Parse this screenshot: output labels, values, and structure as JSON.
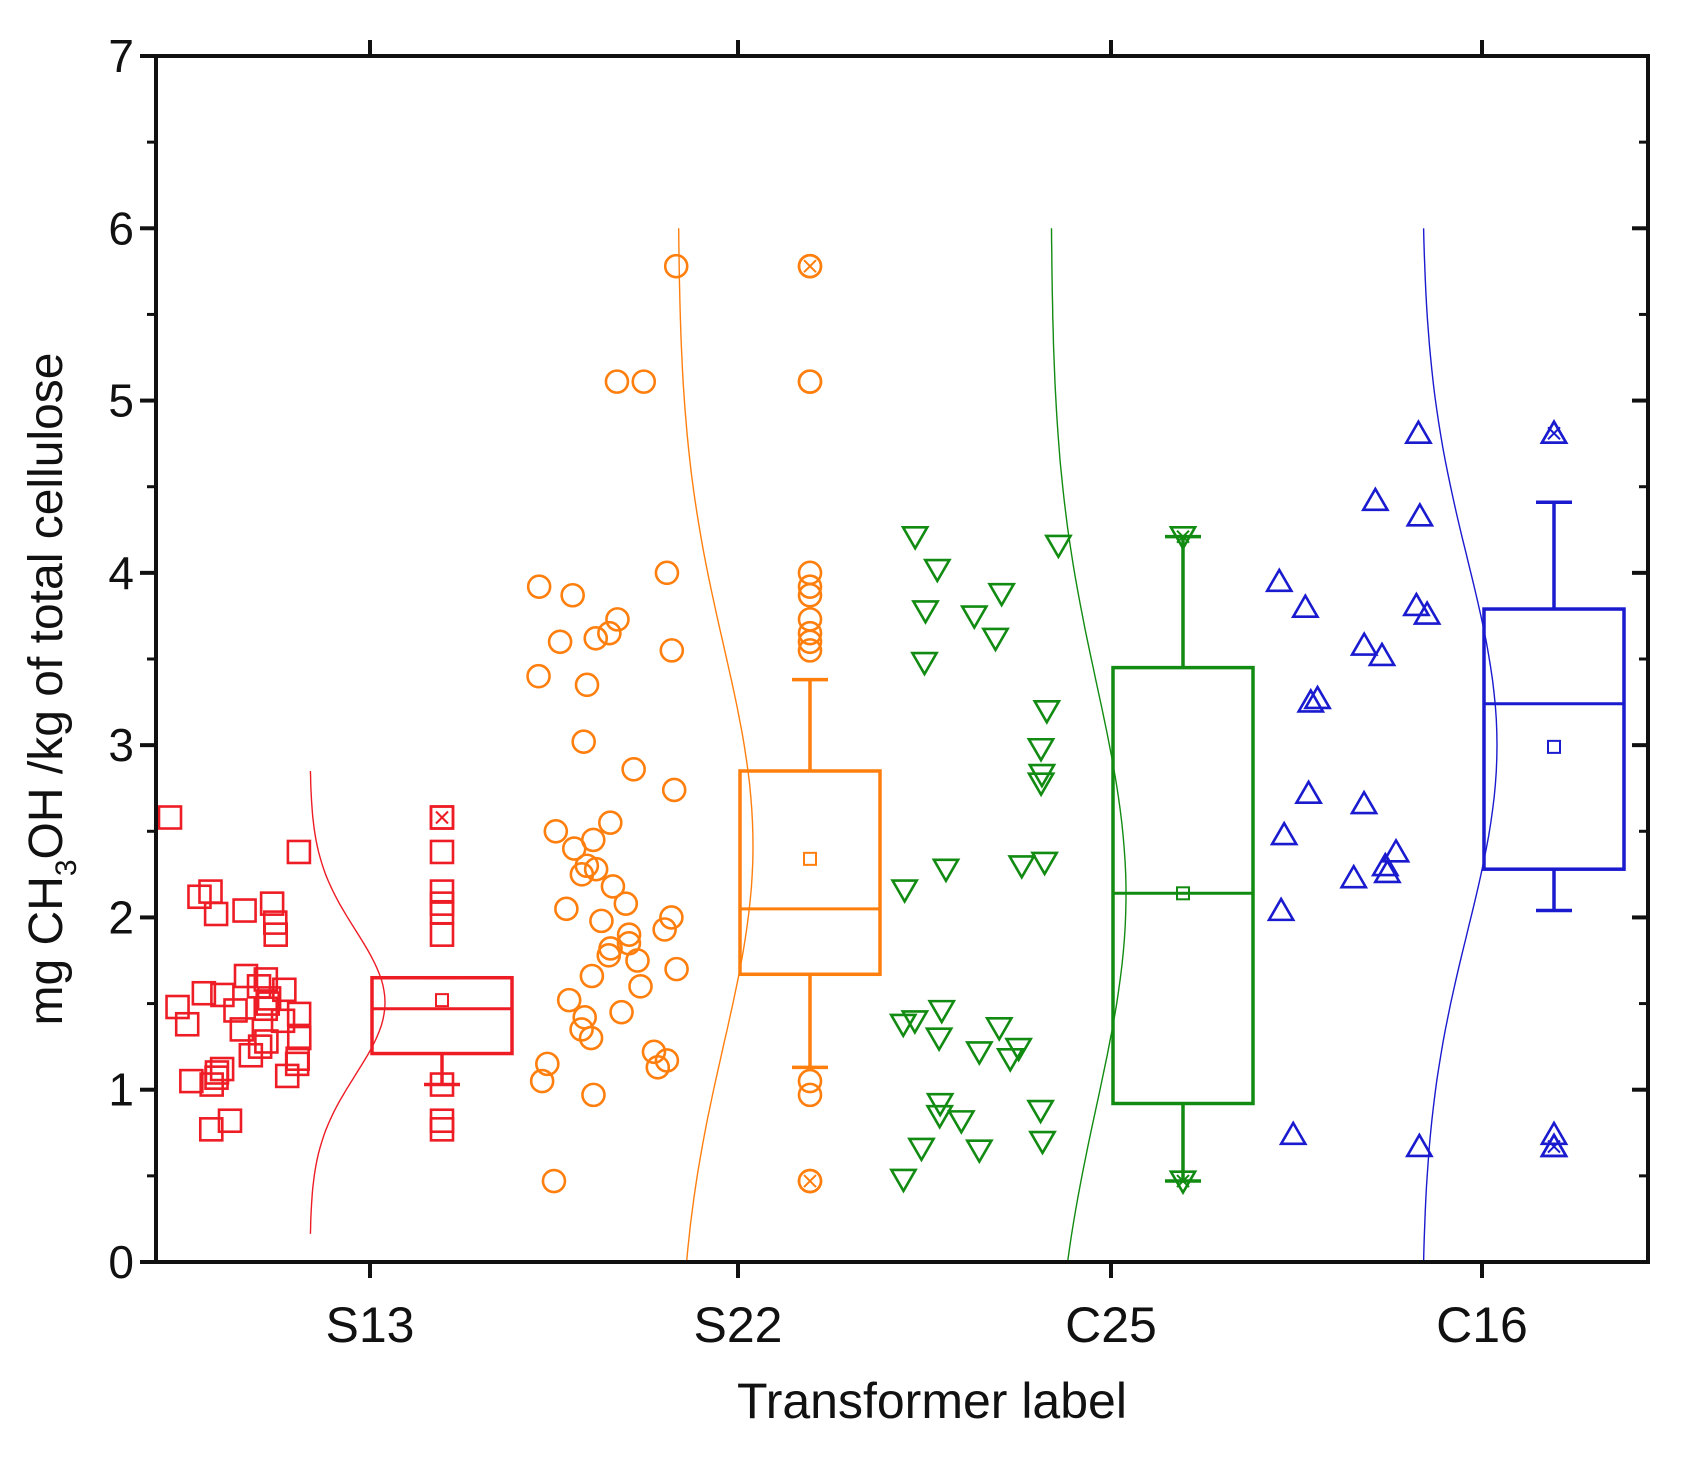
{
  "chart_data": {
    "type": "box",
    "title": "",
    "xlabel": "Transformer label",
    "ylabel": {
      "prefix": "mg CH",
      "subscript": "3",
      "suffix": "OH /kg of total cellulose"
    },
    "ylim": [
      0,
      7
    ],
    "yticks": [
      "0",
      "1",
      "2",
      "3",
      "4",
      "5",
      "6",
      "7"
    ],
    "categories": [
      "S13",
      "S22",
      "C25",
      "C16"
    ],
    "series": [
      {
        "name": "S13",
        "color": "#ee1c25",
        "marker": "square",
        "stats": {
          "q1": 1.21,
          "median": 1.47,
          "q3": 1.65,
          "mean": 1.52,
          "whisker_low": 1.03,
          "whisker_high": 1.65
        },
        "points": [
          2.58,
          2.38,
          2.15,
          2.12,
          2.08,
          2.04,
          2.02,
          1.97,
          1.9,
          1.66,
          1.64,
          1.6,
          1.58,
          1.56,
          1.55,
          1.53,
          1.5,
          1.48,
          1.47,
          1.46,
          1.44,
          1.4,
          1.38,
          1.35,
          1.3,
          1.28,
          1.25,
          1.2,
          1.18,
          1.15,
          1.12,
          1.1,
          1.08,
          1.07,
          1.05,
          1.03,
          0.82,
          0.77
        ],
        "outliers": [
          2.58,
          2.38,
          2.15,
          2.08,
          2.03,
          1.9,
          1.03,
          0.82,
          0.77
        ],
        "extremes": [
          2.58
        ]
      },
      {
        "name": "S22",
        "color": "#ff7f0e",
        "marker": "circle",
        "stats": {
          "q1": 1.67,
          "median": 2.05,
          "q3": 2.85,
          "mean": 2.34,
          "whisker_low": 1.13,
          "whisker_high": 3.38
        },
        "points": [
          5.78,
          5.11,
          5.11,
          4.0,
          3.92,
          3.87,
          3.73,
          3.65,
          3.62,
          3.6,
          3.55,
          3.4,
          3.35,
          3.02,
          2.86,
          2.74,
          2.55,
          2.5,
          2.45,
          2.4,
          2.3,
          2.28,
          2.25,
          2.18,
          2.08,
          2.05,
          2.0,
          1.98,
          1.93,
          1.9,
          1.85,
          1.82,
          1.78,
          1.75,
          1.7,
          1.66,
          1.6,
          1.52,
          1.45,
          1.42,
          1.35,
          1.3,
          1.22,
          1.17,
          1.15,
          1.13,
          1.05,
          0.97,
          0.47
        ],
        "outliers": [
          5.78,
          5.11,
          5.11,
          4.0,
          3.92,
          3.87,
          3.73,
          3.65,
          3.6,
          3.55,
          1.05,
          0.97,
          0.47
        ],
        "extremes": [
          5.78,
          0.47
        ]
      },
      {
        "name": "C25",
        "color": "#118b11",
        "marker": "triangle-down",
        "stats": {
          "q1": 0.92,
          "median": 2.14,
          "q3": 3.45,
          "mean": 2.14,
          "whisker_low": 0.47,
          "whisker_high": 4.21
        },
        "points": [
          4.21,
          4.16,
          4.02,
          3.88,
          3.78,
          3.75,
          3.62,
          3.48,
          3.2,
          2.98,
          2.83,
          2.78,
          2.32,
          2.3,
          2.28,
          2.16,
          1.46,
          1.4,
          1.38,
          1.36,
          1.3,
          1.24,
          1.22,
          1.18,
          0.92,
          0.88,
          0.85,
          0.82,
          0.7,
          0.66,
          0.65,
          0.48
        ],
        "outliers": [],
        "extremes": [
          4.21,
          0.47
        ]
      },
      {
        "name": "C16",
        "color": "#1a1acf",
        "marker": "triangle-up",
        "stats": {
          "q1": 2.28,
          "median": 3.24,
          "q3": 3.79,
          "mean": 2.99,
          "whisker_low": 2.04,
          "whisker_high": 4.41
        },
        "points": [
          4.81,
          4.42,
          4.33,
          3.95,
          3.81,
          3.8,
          3.76,
          3.58,
          3.52,
          3.27,
          3.25,
          2.72,
          2.66,
          2.48,
          2.38,
          2.3,
          2.26,
          2.23,
          2.04,
          0.74,
          0.67
        ],
        "outliers": [
          4.81,
          0.74,
          0.67
        ],
        "extremes": [
          4.81,
          0.67
        ]
      }
    ]
  }
}
